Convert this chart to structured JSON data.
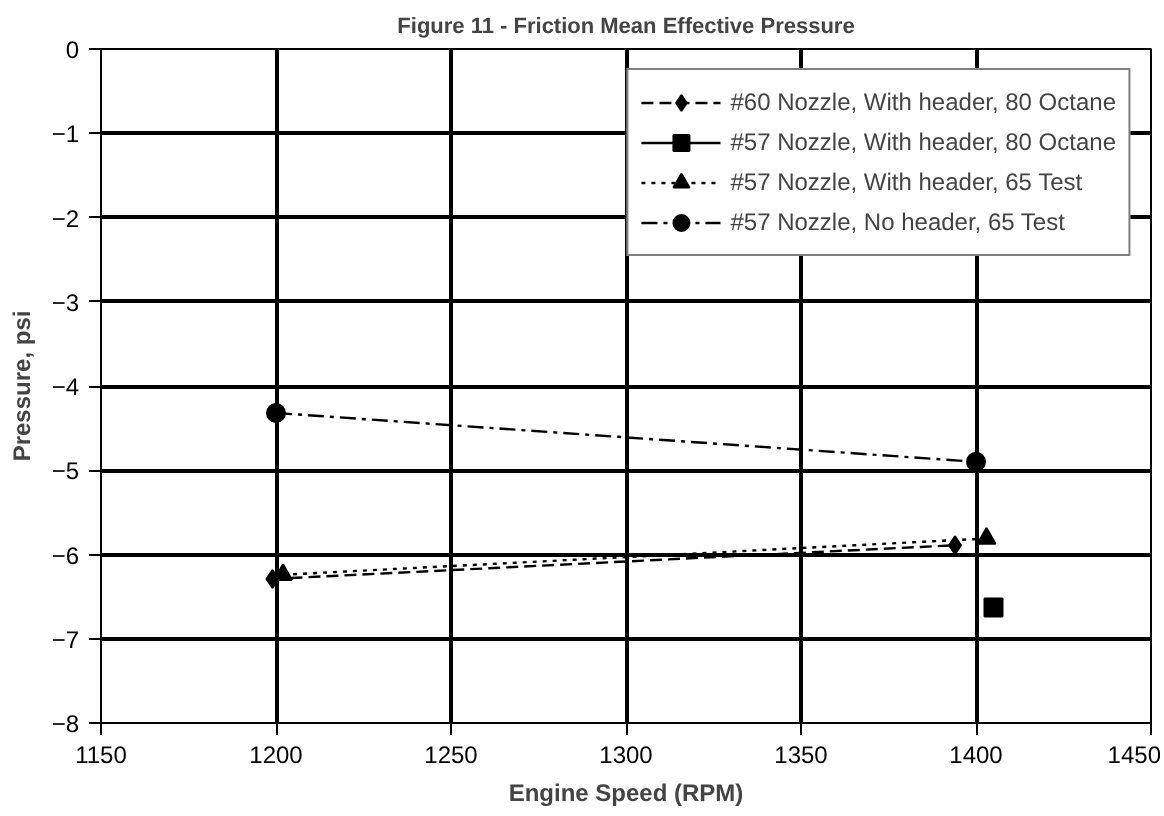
{
  "chart_data": {
    "type": "line",
    "title": "Figure 11 - Friction Mean Effective Pressure",
    "xlabel": "Engine Speed (RPM)",
    "ylabel": "Pressure, psi",
    "xlim": [
      1150,
      1450
    ],
    "xticks": [
      1150,
      1200,
      1250,
      1300,
      1350,
      1400,
      1450
    ],
    "ylim": [
      -8,
      0
    ],
    "yticks": [
      -8,
      -7,
      -6,
      -5,
      -4,
      -3,
      -2,
      -1,
      0
    ],
    "grid": true,
    "legend": "top right",
    "series": [
      {
        "name": "#60 Nozzle, With header, 80 Octane",
        "color": "#000000",
        "marker": "diamond",
        "line_style": "dashed",
        "x": [
          1199,
          1394
        ],
        "values": [
          -6.29,
          -5.89
        ]
      },
      {
        "name": "#57 Nozzle, With header, 80 Octane",
        "color": "#000000",
        "marker": "square",
        "line_style": "solid",
        "x": [
          1405
        ],
        "values": [
          -6.63
        ]
      },
      {
        "name": "#57 Nozzle, With header, 65 Test",
        "color": "#000000",
        "marker": "triangle",
        "line_style": "dotted",
        "x": [
          1202,
          1403
        ],
        "values": [
          -6.24,
          -5.81
        ]
      },
      {
        "name": "#57 Nozzle, No header, 65 Test",
        "color": "#000000",
        "marker": "circle",
        "line_style": "dashdot",
        "x": [
          1200,
          1400
        ],
        "values": [
          -4.32,
          -4.9
        ]
      }
    ]
  }
}
